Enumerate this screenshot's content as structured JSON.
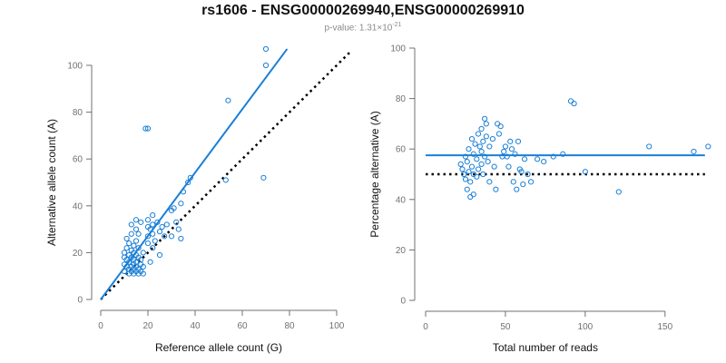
{
  "title": "rs1606 - ENSG00000269940,ENSG00000269910",
  "subtitle": {
    "prefix": "p-value: 1.31×10",
    "exponent": "-21"
  },
  "colors": {
    "points": "#1a7fd6",
    "fit": "#1a7fd6",
    "reference": "#000000",
    "axis": "#707070"
  },
  "chart_data": [
    {
      "type": "scatter",
      "xlabel": "Reference allele count (G)",
      "ylabel": "Alternative allele count (A)",
      "xlim": [
        0,
        100
      ],
      "ylim": [
        0,
        100
      ],
      "xticks": [
        0,
        20,
        40,
        60,
        80,
        100
      ],
      "yticks": [
        0,
        20,
        40,
        60,
        80,
        100
      ],
      "grid": false,
      "fit_line": {
        "x": [
          0,
          79
        ],
        "y": [
          0,
          107
        ]
      },
      "reference_line": {
        "x": [
          0,
          106
        ],
        "y": [
          0,
          106
        ]
      },
      "points": [
        [
          10,
          12
        ],
        [
          10,
          15
        ],
        [
          10,
          18
        ],
        [
          10,
          20
        ],
        [
          11,
          14
        ],
        [
          11,
          17
        ],
        [
          11,
          22
        ],
        [
          11,
          26
        ],
        [
          12,
          11
        ],
        [
          12,
          13
        ],
        [
          12,
          16
        ],
        [
          12,
          19
        ],
        [
          12,
          24
        ],
        [
          13,
          12
        ],
        [
          13,
          14
        ],
        [
          13,
          18
        ],
        [
          13,
          21
        ],
        [
          13,
          28
        ],
        [
          13,
          32
        ],
        [
          14,
          11
        ],
        [
          14,
          13
        ],
        [
          14,
          15
        ],
        [
          14,
          17
        ],
        [
          14,
          20
        ],
        [
          14,
          23
        ],
        [
          15,
          12
        ],
        [
          15,
          14
        ],
        [
          15,
          16
        ],
        [
          15,
          19
        ],
        [
          15,
          25
        ],
        [
          15,
          30
        ],
        [
          15,
          34
        ],
        [
          16,
          11
        ],
        [
          16,
          13
        ],
        [
          16,
          18
        ],
        [
          16,
          22
        ],
        [
          16,
          28
        ],
        [
          17,
          12
        ],
        [
          17,
          15
        ],
        [
          17,
          17
        ],
        [
          17,
          33
        ],
        [
          18,
          11
        ],
        [
          18,
          14
        ],
        [
          18,
          20
        ],
        [
          19,
          73
        ],
        [
          20,
          73
        ],
        [
          20,
          24
        ],
        [
          20,
          27
        ],
        [
          20,
          31
        ],
        [
          20,
          34
        ],
        [
          21,
          16
        ],
        [
          21,
          30
        ],
        [
          22,
          22
        ],
        [
          22,
          28
        ],
        [
          22,
          32
        ],
        [
          22,
          36
        ],
        [
          23,
          25
        ],
        [
          24,
          33
        ],
        [
          25,
          19
        ],
        [
          25,
          29
        ],
        [
          26,
          31
        ],
        [
          27,
          27
        ],
        [
          28,
          32
        ],
        [
          30,
          27
        ],
        [
          30,
          38
        ],
        [
          31,
          39
        ],
        [
          32,
          33
        ],
        [
          33,
          30
        ],
        [
          34,
          26
        ],
        [
          34,
          41
        ],
        [
          35,
          46
        ],
        [
          37,
          50
        ],
        [
          38,
          52
        ],
        [
          53,
          51
        ],
        [
          54,
          85
        ],
        [
          69,
          52
        ],
        [
          70,
          100
        ],
        [
          70,
          107
        ]
      ]
    },
    {
      "type": "scatter",
      "xlabel": "Total number of reads",
      "ylabel": "Percentage alternative (A)",
      "xlim": [
        0,
        170
      ],
      "ylim": [
        0,
        100
      ],
      "xticks": [
        0,
        50,
        100,
        150
      ],
      "yticks": [
        0,
        20,
        40,
        60,
        80,
        100
      ],
      "grid": false,
      "fit_line": {
        "x": [
          0,
          175
        ],
        "y": [
          57.5,
          57.5
        ]
      },
      "reference_line": {
        "x": [
          0,
          175
        ],
        "y": [
          50,
          50
        ]
      },
      "points": [
        [
          22,
          54
        ],
        [
          23,
          52
        ],
        [
          24,
          50
        ],
        [
          25,
          57
        ],
        [
          25,
          48
        ],
        [
          26,
          44
        ],
        [
          26,
          55
        ],
        [
          27,
          60
        ],
        [
          27,
          51
        ],
        [
          28,
          41
        ],
        [
          28,
          47
        ],
        [
          29,
          64
        ],
        [
          29,
          53
        ],
        [
          30,
          42
        ],
        [
          30,
          58
        ],
        [
          30,
          50
        ],
        [
          31,
          62
        ],
        [
          32,
          56
        ],
        [
          32,
          49
        ],
        [
          33,
          66
        ],
        [
          33,
          52
        ],
        [
          34,
          61
        ],
        [
          35,
          68
        ],
        [
          35,
          59
        ],
        [
          35,
          54
        ],
        [
          36,
          63
        ],
        [
          36,
          50
        ],
        [
          37,
          72
        ],
        [
          37,
          57
        ],
        [
          38,
          70
        ],
        [
          38,
          65
        ],
        [
          39,
          55
        ],
        [
          40,
          61
        ],
        [
          40,
          47
        ],
        [
          42,
          64
        ],
        [
          43,
          53
        ],
        [
          44,
          44
        ],
        [
          45,
          70
        ],
        [
          46,
          66
        ],
        [
          47,
          69
        ],
        [
          48,
          57
        ],
        [
          49,
          59
        ],
        [
          50,
          61
        ],
        [
          51,
          57
        ],
        [
          52,
          53
        ],
        [
          53,
          63
        ],
        [
          54,
          60
        ],
        [
          55,
          47
        ],
        [
          56,
          58
        ],
        [
          57,
          44
        ],
        [
          58,
          63
        ],
        [
          59,
          52
        ],
        [
          60,
          51
        ],
        [
          61,
          46
        ],
        [
          62,
          56
        ],
        [
          64,
          50
        ],
        [
          66,
          47
        ],
        [
          70,
          56
        ],
        [
          74,
          55
        ],
        [
          80,
          57
        ],
        [
          86,
          58
        ],
        [
          91,
          79
        ],
        [
          93,
          78
        ],
        [
          100,
          51
        ],
        [
          121,
          43
        ],
        [
          140,
          61
        ],
        [
          168,
          59
        ],
        [
          177,
          61
        ]
      ]
    }
  ]
}
